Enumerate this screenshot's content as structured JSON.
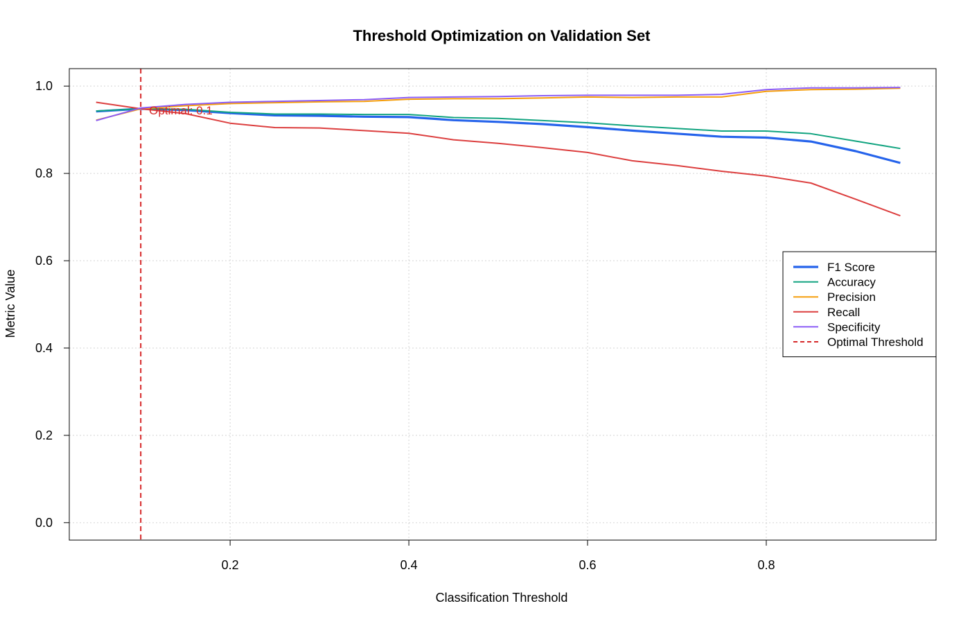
{
  "chart_data": {
    "type": "line",
    "title": "Threshold Optimization on Validation Set",
    "xlabel": "Classification Threshold",
    "ylabel": "Metric Value",
    "xlim": [
      0.02,
      0.99
    ],
    "ylim": [
      -0.04,
      1.04
    ],
    "x_ticks": [
      0.2,
      0.4,
      0.6,
      0.8
    ],
    "x_tick_labels": [
      "0.2",
      "0.4",
      "0.6",
      "0.8"
    ],
    "y_ticks": [
      0.0,
      0.2,
      0.4,
      0.6,
      0.8,
      1.0
    ],
    "y_tick_labels": [
      "0.0",
      "0.2",
      "0.4",
      "0.6",
      "0.8",
      "1.0"
    ],
    "grid": true,
    "legend_position": "right",
    "x": [
      0.05,
      0.1,
      0.15,
      0.2,
      0.25,
      0.3,
      0.35,
      0.4,
      0.45,
      0.5,
      0.55,
      0.6,
      0.65,
      0.7,
      0.75,
      0.8,
      0.85,
      0.9,
      0.95
    ],
    "series": [
      {
        "name": "F1 Score",
        "color": "#2563eb",
        "width": 3.2,
        "dash": "",
        "values": [
          0.942,
          0.948,
          0.945,
          0.938,
          0.933,
          0.932,
          0.93,
          0.929,
          0.922,
          0.918,
          0.913,
          0.906,
          0.898,
          0.891,
          0.884,
          0.882,
          0.873,
          0.851,
          0.824
        ]
      },
      {
        "name": "Accuracy",
        "color": "#10a37f",
        "width": 2,
        "dash": "",
        "values": [
          0.943,
          0.948,
          0.947,
          0.94,
          0.936,
          0.936,
          0.935,
          0.935,
          0.928,
          0.926,
          0.921,
          0.916,
          0.909,
          0.903,
          0.897,
          0.897,
          0.891,
          0.874,
          0.857
        ]
      },
      {
        "name": "Precision",
        "color": "#f59e0b",
        "width": 2,
        "dash": "",
        "values": [
          0.922,
          0.948,
          0.955,
          0.96,
          0.962,
          0.964,
          0.965,
          0.97,
          0.971,
          0.971,
          0.973,
          0.975,
          0.974,
          0.975,
          0.975,
          0.988,
          0.992,
          0.993,
          0.995
        ]
      },
      {
        "name": "Recall",
        "color": "#dc3e3e",
        "width": 2,
        "dash": "",
        "values": [
          0.963,
          0.948,
          0.937,
          0.915,
          0.905,
          0.904,
          0.898,
          0.892,
          0.877,
          0.869,
          0.859,
          0.848,
          0.829,
          0.818,
          0.805,
          0.794,
          0.778,
          0.741,
          0.703
        ]
      },
      {
        "name": "Specificity",
        "color": "#8b5cf6",
        "width": 2,
        "dash": "",
        "values": [
          0.921,
          0.95,
          0.958,
          0.963,
          0.965,
          0.967,
          0.969,
          0.974,
          0.975,
          0.976,
          0.978,
          0.979,
          0.979,
          0.979,
          0.981,
          0.992,
          0.996,
          0.996,
          0.997
        ]
      }
    ],
    "optimal_threshold": {
      "name": "Optimal Threshold",
      "x": 0.1,
      "color": "#d62728",
      "label": "Optimal: 0.1",
      "label_y": 0.948
    }
  }
}
